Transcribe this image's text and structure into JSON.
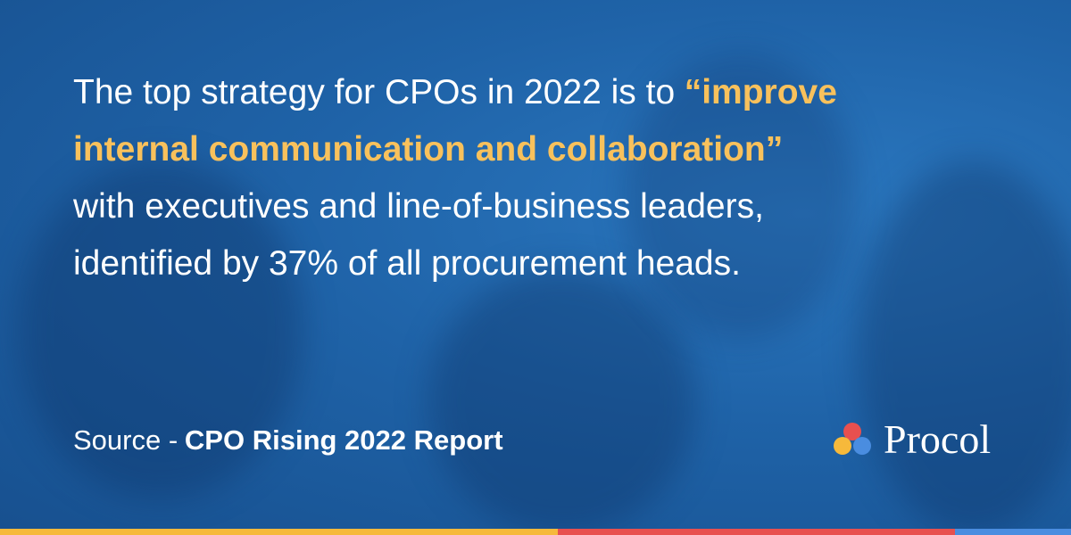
{
  "quote": {
    "lines": [
      [
        {
          "text": "The top strategy for CPOs in 2022 is to",
          "emphasis": false
        },
        {
          "text": "“improve",
          "emphasis": true
        }
      ],
      [
        {
          "text": "internal communication and collaboration”",
          "emphasis": true
        }
      ],
      [
        {
          "text": "with executives and line-of-business leaders,",
          "emphasis": false
        }
      ],
      [
        {
          "text": "identified by 37% of all procurement heads.",
          "emphasis": false
        }
      ]
    ]
  },
  "source": {
    "label": "Source -",
    "title": "CPO Rising 2022 Report"
  },
  "brand": {
    "name": "Procol"
  }
}
